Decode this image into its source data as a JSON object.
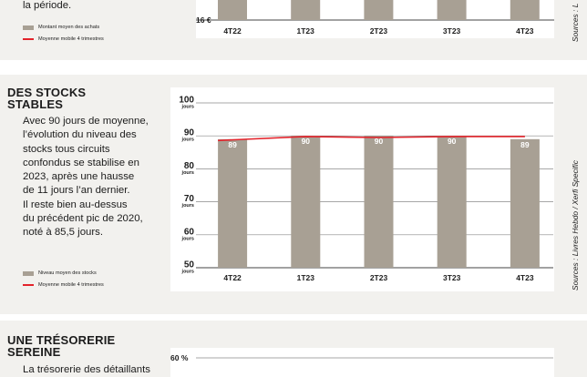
{
  "top_panel": {
    "text_tail": "la période.",
    "legend": {
      "bars": "Montant moyen des achats",
      "line": "Moyenne mobile 4 trimestres"
    },
    "ytick_bottom": "16 €",
    "source": "Sources : L",
    "colors": {
      "bar": "#a8a094",
      "line": "#e3232b"
    }
  },
  "stocks_panel": {
    "title_line1": "DES STOCKS",
    "title_line2": "STABLES",
    "text_lines": [
      "Avec 90 jours de moyenne,",
      "l’évolution du niveau des",
      "stocks tous circuits",
      "confondus se stabilise en",
      "2023, après une hausse",
      "de 11 jours l’an dernier.",
      "Il reste bien au-dessus",
      "du précédent pic de 2020,",
      "noté à 85,5 jours."
    ],
    "legend": {
      "bars": "Niveau moyen des stocks",
      "line": "Moyenne mobile 4 trimestres"
    },
    "source": "Sources : Livres Hebdo / Xerfi Specific"
  },
  "tresorerie_panel": {
    "title_line1": "UNE TRÉSORERIE",
    "title_line2": "SEREINE",
    "text_first": "La trésorerie des détaillants",
    "ytick_top": "60 %"
  },
  "chart_data": [
    {
      "type": "bar",
      "title": "",
      "categories": [
        "4T22",
        "1T23",
        "2T23",
        "3T23",
        "4T23"
      ],
      "ytick_labels": [
        "16 €"
      ],
      "series": [
        {
          "name": "Montant moyen des achats",
          "type": "bar"
        },
        {
          "name": "Moyenne mobile 4 trimestres",
          "type": "line"
        }
      ]
    },
    {
      "type": "bar",
      "title": "",
      "categories": [
        "4T22",
        "1T23",
        "2T23",
        "3T23",
        "4T23"
      ],
      "ylim": [
        50,
        100
      ],
      "yticks": [
        50,
        60,
        70,
        80,
        90,
        100
      ],
      "yunit": "jours",
      "grid": true,
      "series": [
        {
          "name": "Niveau moyen des stocks",
          "type": "bar",
          "values": [
            89,
            90,
            90,
            90,
            89
          ]
        },
        {
          "name": "Moyenne mobile 4 trimestres",
          "type": "line",
          "values": [
            88.6,
            89.8,
            89.5,
            89.8,
            89.8
          ]
        }
      ],
      "colors": {
        "bar": "#a8a094",
        "line": "#e3232b",
        "label": "#ffffff"
      }
    },
    {
      "type": "bar",
      "title": "",
      "ytick_labels": [
        "60 %"
      ]
    }
  ]
}
